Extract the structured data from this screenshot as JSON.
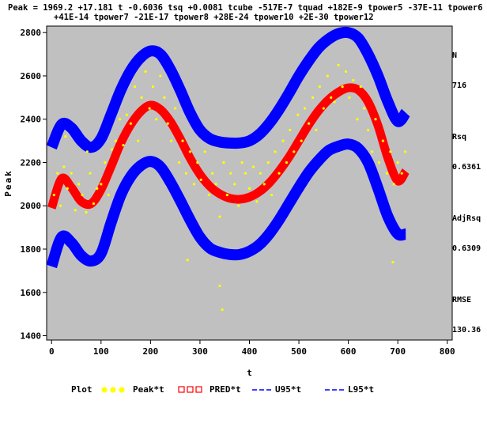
{
  "equation": {
    "line1": "Peak = 1969.2 +17.181 t -0.6036 tsq +0.0081 tcube -517E-7 tquad +182E-9 tpower5 -37E-11 tpower6",
    "line2": "+41E-14 tpower7 -21E-17 tpower8 +28E-24 tpower10 +2E-30 tpower12"
  },
  "stats": {
    "n_label": "N",
    "n_value": "716",
    "rsq_label": "Rsq",
    "rsq_value": "0.6361",
    "adjrsq_label": "AdjRsq",
    "adjrsq_value": "0.6309",
    "rmse_label": "RMSE",
    "rmse_value": "130.36"
  },
  "legend": {
    "title": "Plot",
    "items": [
      {
        "label": "Peak*t",
        "symbol": "dots",
        "color": "#ffff00"
      },
      {
        "label": "PRED*t",
        "symbol": "squares",
        "color": "#ff0000"
      },
      {
        "label": "U95*t",
        "symbol": "dashes",
        "color": "#0000ff"
      },
      {
        "label": "L95*t",
        "symbol": "dashes",
        "color": "#0000ff"
      }
    ]
  },
  "colors": {
    "plot_bg": "#c0c0c0",
    "points": "#ffff00",
    "pred": "#ff0000",
    "bands": "#0000ff"
  },
  "chart_data": {
    "type": "scatter",
    "xlabel": "t",
    "ylabel": "Peak",
    "xlim": [
      -10,
      810
    ],
    "ylim": [
      1380,
      2830
    ],
    "xticks": [
      0,
      100,
      200,
      300,
      400,
      500,
      600,
      700,
      800
    ],
    "yticks": [
      1400,
      1600,
      1800,
      2000,
      2200,
      2400,
      2600,
      2800
    ],
    "grid": false,
    "legend_position": "bottom",
    "series": [
      {
        "name": "PRED*t",
        "kind": "fit",
        "x": [
          0,
          20,
          40,
          60,
          80,
          100,
          120,
          140,
          160,
          180,
          200,
          220,
          240,
          260,
          280,
          300,
          320,
          340,
          360,
          380,
          400,
          420,
          440,
          460,
          480,
          500,
          520,
          540,
          560,
          580,
          600,
          620,
          640,
          660,
          680,
          700,
          716
        ],
        "y": [
          1990,
          2125,
          2085,
          2020,
          2010,
          2075,
          2180,
          2290,
          2375,
          2435,
          2465,
          2445,
          2390,
          2310,
          2220,
          2145,
          2090,
          2055,
          2035,
          2030,
          2040,
          2065,
          2105,
          2160,
          2225,
          2300,
          2375,
          2440,
          2490,
          2525,
          2545,
          2535,
          2480,
          2370,
          2220,
          2115,
          2160
        ]
      },
      {
        "name": "U95*t",
        "kind": "band",
        "x": [
          0,
          20,
          40,
          60,
          80,
          100,
          120,
          140,
          160,
          180,
          200,
          220,
          240,
          260,
          280,
          300,
          320,
          340,
          360,
          380,
          400,
          420,
          440,
          460,
          480,
          500,
          520,
          540,
          560,
          580,
          600,
          620,
          640,
          660,
          680,
          700,
          716
        ],
        "y": [
          2270,
          2375,
          2360,
          2300,
          2270,
          2310,
          2420,
          2535,
          2625,
          2685,
          2715,
          2700,
          2630,
          2535,
          2430,
          2350,
          2310,
          2295,
          2290,
          2290,
          2300,
          2330,
          2380,
          2445,
          2520,
          2600,
          2670,
          2730,
          2770,
          2795,
          2800,
          2775,
          2700,
          2600,
          2480,
          2390,
          2430
        ]
      },
      {
        "name": "L95*t",
        "kind": "band",
        "x": [
          0,
          20,
          40,
          60,
          80,
          100,
          120,
          140,
          160,
          180,
          200,
          220,
          240,
          260,
          280,
          300,
          320,
          340,
          360,
          380,
          400,
          420,
          440,
          460,
          480,
          500,
          520,
          540,
          560,
          580,
          600,
          620,
          640,
          660,
          680,
          700,
          716
        ],
        "y": [
          1720,
          1855,
          1830,
          1770,
          1745,
          1780,
          1920,
          2050,
          2135,
          2185,
          2205,
          2180,
          2110,
          2025,
          1935,
          1855,
          1805,
          1785,
          1775,
          1775,
          1790,
          1820,
          1870,
          1935,
          2010,
          2085,
          2155,
          2210,
          2255,
          2275,
          2285,
          2265,
          2200,
          2080,
          1950,
          1870,
          1870
        ]
      },
      {
        "name": "Peak*t",
        "kind": "points",
        "x": [
          5,
          12,
          18,
          25,
          32,
          40,
          48,
          55,
          62,
          70,
          78,
          85,
          92,
          100,
          108,
          115,
          122,
          130,
          138,
          145,
          152,
          160,
          168,
          175,
          182,
          190,
          198,
          205,
          212,
          220,
          228,
          235,
          242,
          250,
          258,
          265,
          272,
          280,
          288,
          295,
          302,
          310,
          318,
          325,
          332,
          340,
          348,
          355,
          362,
          370,
          378,
          385,
          392,
          400,
          408,
          415,
          422,
          430,
          438,
          445,
          452,
          460,
          468,
          475,
          482,
          490,
          498,
          505,
          512,
          520,
          528,
          535,
          542,
          550,
          558,
          565,
          572,
          580,
          588,
          595,
          602,
          610,
          618,
          625,
          632,
          640,
          648,
          655,
          662,
          670,
          678,
          685,
          692,
          700,
          708,
          715,
          275,
          345,
          340,
          690,
          28,
          72
        ],
        "y": [
          2050,
          2150,
          2000,
          2180,
          2080,
          2150,
          1980,
          2100,
          2050,
          1970,
          2150,
          2010,
          2080,
          2100,
          2200,
          2050,
          2260,
          2300,
          2400,
          2280,
          2420,
          2380,
          2550,
          2300,
          2500,
          2620,
          2450,
          2550,
          2400,
          2600,
          2500,
          2380,
          2300,
          2450,
          2200,
          2300,
          2150,
          2250,
          2100,
          2200,
          2120,
          2250,
          2050,
          2150,
          2100,
          1950,
          2200,
          2050,
          2150,
          2100,
          2000,
          2200,
          2150,
          2080,
          2180,
          2020,
          2150,
          2100,
          2200,
          2050,
          2250,
          2150,
          2300,
          2200,
          2350,
          2250,
          2420,
          2300,
          2450,
          2380,
          2500,
          2350,
          2550,
          2450,
          2600,
          2500,
          2480,
          2650,
          2550,
          2620,
          2500,
          2580,
          2400,
          2550,
          2450,
          2350,
          2250,
          2400,
          2200,
          2300,
          2150,
          2250,
          2100,
          2200,
          2150,
          2250,
          1750,
          1520,
          1630,
          1740,
          2320,
          2250
        ]
      }
    ]
  }
}
